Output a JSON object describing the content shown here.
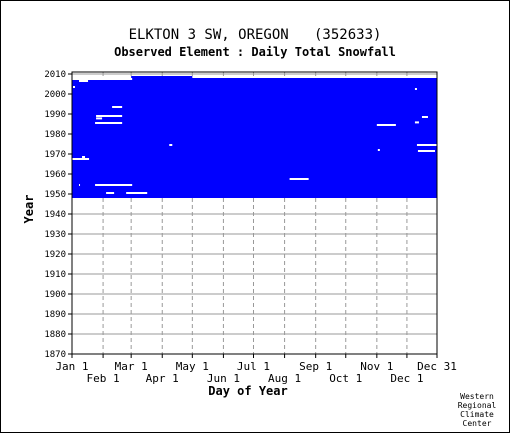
{
  "page": {
    "title": "ELKTON 3 SW, OREGON   (352633)",
    "subtitle": "Observed Element : Daily Total Snowfall",
    "credit": [
      "Western",
      "Regional",
      "Climate",
      "Center"
    ]
  },
  "chart_data": {
    "type": "heatmap",
    "title": "ELKTON 3 SW, OREGON   (352633)",
    "subtitle": "Observed Element : Daily Total Snowfall",
    "xlabel": "Day of Year",
    "ylabel": "Year",
    "xlim": [
      1,
      365
    ],
    "ylim": [
      1870,
      2011
    ],
    "grid": true,
    "colors": {
      "data": "#0000ff",
      "gap": "#ffffff",
      "grid": "#999999"
    },
    "x_ticks_upper": [
      {
        "label": "Jan 1",
        "day": 1
      },
      {
        "label": "Mar 1",
        "day": 60
      },
      {
        "label": "May 1",
        "day": 121
      },
      {
        "label": "Jul 1",
        "day": 182
      },
      {
        "label": "Sep 1",
        "day": 244
      },
      {
        "label": "Nov 1",
        "day": 305
      },
      {
        "label": "Dec 31",
        "day": 365
      }
    ],
    "x_ticks_lower": [
      {
        "label": "Feb 1",
        "day": 32
      },
      {
        "label": "Apr 1",
        "day": 91
      },
      {
        "label": "Jun 1",
        "day": 152
      },
      {
        "label": "Aug 1",
        "day": 213
      },
      {
        "label": "Oct 1",
        "day": 274
      },
      {
        "label": "Dec 1",
        "day": 335
      }
    ],
    "y_ticks": [
      "1870",
      "1880",
      "1890",
      "1900",
      "1910",
      "1920",
      "1930",
      "1940",
      "1950",
      "1960",
      "1970",
      "1980",
      "1990",
      "2000",
      "2010"
    ],
    "coverage": [
      {
        "from_year": 1948,
        "to_year": 2007,
        "start_day": 1,
        "end_day": 365
      },
      {
        "from_year": 1948,
        "to_year": 1948,
        "start_day": 60,
        "end_day": 365
      },
      {
        "from_year": 2008,
        "to_year": 2008,
        "start_day": 60,
        "end_day": 121
      }
    ],
    "gaps": [
      {
        "year": 2006.5,
        "start_day": 8,
        "end_day": 16
      },
      {
        "year": 2007.5,
        "start_day": 1,
        "end_day": 60
      },
      {
        "year": 2003.5,
        "start_day": 2,
        "end_day": 3
      },
      {
        "year": 2002.5,
        "start_day": 343,
        "end_day": 344
      },
      {
        "year": 1993.5,
        "start_day": 41,
        "end_day": 50
      },
      {
        "year": 1989,
        "start_day": 25,
        "end_day": 50
      },
      {
        "year": 1988.5,
        "start_day": 350,
        "end_day": 355
      },
      {
        "year": 1987.8,
        "start_day": 25,
        "end_day": 30
      },
      {
        "year": 1985.5,
        "start_day": 24,
        "end_day": 50
      },
      {
        "year": 1985.8,
        "start_day": 343,
        "end_day": 346
      },
      {
        "year": 1984.5,
        "start_day": 305,
        "end_day": 323
      },
      {
        "year": 1974.5,
        "start_day": 345,
        "end_day": 365
      },
      {
        "year": 1974.5,
        "start_day": 98,
        "end_day": 100
      },
      {
        "year": 1972,
        "start_day": 306,
        "end_day": 307
      },
      {
        "year": 1971.5,
        "start_day": 346,
        "end_day": 362
      },
      {
        "year": 1968.5,
        "start_day": 11,
        "end_day": 13
      },
      {
        "year": 1967.5,
        "start_day": 1,
        "end_day": 17
      },
      {
        "year": 1957.5,
        "start_day": 218,
        "end_day": 236
      },
      {
        "year": 1954.5,
        "start_day": 24,
        "end_day": 60
      },
      {
        "year": 1954.5,
        "start_day": 8,
        "end_day": 8
      },
      {
        "year": 1950.5,
        "start_day": 55,
        "end_day": 75
      },
      {
        "year": 1950.5,
        "start_day": 35,
        "end_day": 42
      }
    ]
  }
}
